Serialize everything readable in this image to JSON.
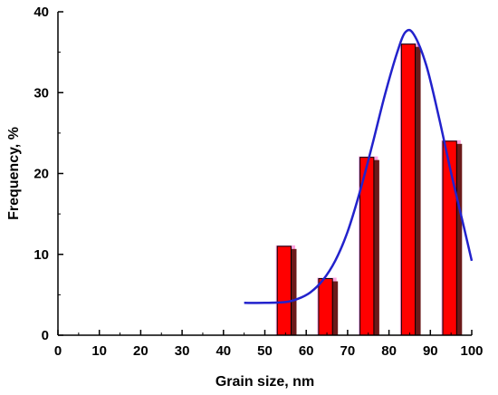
{
  "chart_data": {
    "type": "bar",
    "title": "",
    "xlabel": "Grain size, nm",
    "ylabel": "Frequency, %",
    "xlim": [
      0,
      100
    ],
    "ylim": [
      0,
      40
    ],
    "xticks": [
      0,
      10,
      20,
      30,
      40,
      50,
      60,
      70,
      80,
      90,
      100
    ],
    "yticks": [
      0,
      10,
      20,
      30,
      40
    ],
    "grid": false,
    "legend": "none",
    "bar_width": 4,
    "bar_color": "#ff0000",
    "bar_shadow_color": "#6b1a1a",
    "bar_halo_color": "#ff66cc",
    "curve_color": "#2222cc",
    "x": [
      55,
      65,
      75,
      85,
      95
    ],
    "values": [
      11,
      7,
      22,
      36,
      24
    ],
    "fit_curve": {
      "type": "line",
      "x": [
        45,
        50,
        55,
        58,
        61,
        64,
        67,
        70,
        73,
        76,
        79,
        82,
        84,
        86,
        89,
        92,
        95,
        98,
        100
      ],
      "y": [
        4.0,
        4.0,
        4.1,
        4.5,
        5.3,
        6.8,
        9.2,
        12.8,
        17.8,
        23.6,
        29.7,
        35.0,
        37.5,
        37.2,
        33.4,
        27.1,
        20.1,
        13.6,
        9.2
      ]
    }
  }
}
